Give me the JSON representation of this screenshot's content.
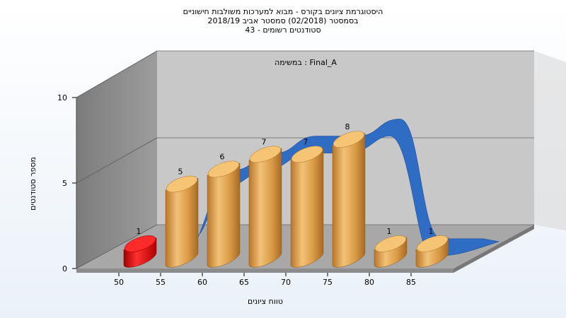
{
  "chart_data": {
    "type": "bar",
    "title_lines": [
      "היסטוגרמת ציונים בקורס - מבוא למערכות משולבות חישוניים",
      "בסמסטר (02/2018) סמסטר אביב 2018/19",
      "סטודנטים רשומים - 43"
    ],
    "panel_label": "במשימה : Final_A",
    "xlabel": "טווח ציונים",
    "ylabel": "מספר סטודנטים",
    "x_ticks": [
      "50",
      "55",
      "60",
      "65",
      "70",
      "75",
      "80",
      "85"
    ],
    "y_ticks": [
      "0",
      "5",
      "10"
    ],
    "ylim": [
      0,
      10
    ],
    "categories": [
      "50",
      "55",
      "60",
      "65",
      "70",
      "75",
      "80",
      "85"
    ],
    "values": [
      1,
      5,
      6,
      7,
      7,
      8,
      1,
      1
    ],
    "highlight_index": 0,
    "colors": {
      "bar": "#e3a24a",
      "highlight": "#dd1111",
      "curve": "#2f6cc4",
      "wall": "#8a8a8a",
      "back_wall": "#c9c9c9",
      "floor": "#a6a6a6"
    }
  }
}
